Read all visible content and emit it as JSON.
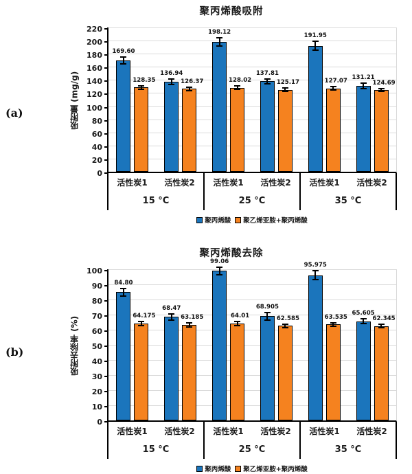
{
  "panels": [
    {
      "label": "(a)"
    },
    {
      "label": "(b)"
    }
  ],
  "colors": {
    "series1": "#1b75bc",
    "series2": "#f5821f",
    "grid": "#d9d9d9",
    "axis": "#000000"
  },
  "chart_data": [
    {
      "id": "a",
      "type": "bar",
      "title": "聚丙烯酸吸附",
      "ylabel": "吸附量 (mg/g)",
      "ylim": [
        0,
        220
      ],
      "ytick_step": 20,
      "grid": true,
      "legend_position": "bottom",
      "groups": [
        "15 °C",
        "25 °C",
        "35 °C"
      ],
      "categories": [
        "活性炭1",
        "活性炭2"
      ],
      "series": [
        {
          "name": "聚丙烯酸",
          "color": "#1b75bc",
          "values": [
            169.6,
            136.94,
            198.12,
            137.81,
            191.95,
            131.21
          ],
          "labels": [
            "169.60",
            "136.94",
            "198.12",
            "137.81",
            "191.95",
            "131.21"
          ],
          "errors": [
            5,
            4,
            6,
            4,
            7,
            4
          ]
        },
        {
          "name": "聚乙烯亚胺+聚丙烯酸",
          "color": "#f5821f",
          "values": [
            128.35,
            126.37,
            128.02,
            125.17,
            127.07,
            124.69
          ],
          "labels": [
            "128.35",
            "126.37",
            "128.02",
            "125.17",
            "127.07",
            "124.69"
          ],
          "errors": [
            2.5,
            2.5,
            2.5,
            2.5,
            2.5,
            2
          ]
        }
      ]
    },
    {
      "id": "b",
      "type": "bar",
      "title": "聚丙烯酸去除",
      "ylabel": "吸附去除率 (%)",
      "ylim": [
        0,
        100
      ],
      "ytick_step": 10,
      "grid": true,
      "legend_position": "bottom",
      "groups": [
        "15 °C",
        "25 °C",
        "35 °C"
      ],
      "categories": [
        "活性炭1",
        "活性炭2"
      ],
      "series": [
        {
          "name": "聚丙烯酸",
          "color": "#1b75bc",
          "values": [
            84.8,
            68.47,
            99.06,
            68.905,
            95.975,
            65.605
          ],
          "labels": [
            "84.80",
            "68.47",
            "99.06",
            "68.905",
            "95.975",
            "65.605"
          ],
          "errors": [
            2.5,
            2,
            2.5,
            2.5,
            3,
            1.5
          ]
        },
        {
          "name": "聚乙烯亚胺+聚丙烯酸",
          "color": "#f5821f",
          "values": [
            64.175,
            63.185,
            64.01,
            62.585,
            63.535,
            62.345
          ],
          "labels": [
            "64.175",
            "63.185",
            "64.01",
            "62.585",
            "63.535",
            "62.345"
          ],
          "errors": [
            1.5,
            1.5,
            1.5,
            1.2,
            1.2,
            1.2
          ]
        }
      ]
    }
  ]
}
